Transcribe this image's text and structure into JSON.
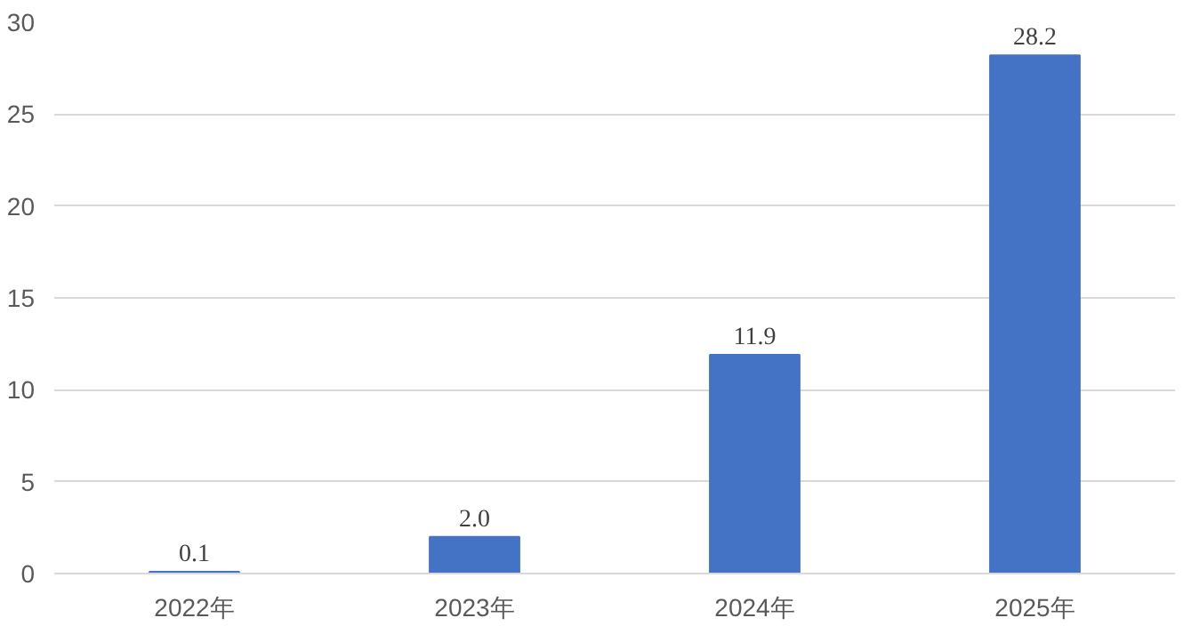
{
  "chart_data": {
    "type": "bar",
    "categories": [
      "2022年",
      "2023年",
      "2024年",
      "2025年"
    ],
    "values": [
      0.1,
      2.0,
      11.9,
      28.2
    ],
    "value_labels": [
      "0.1",
      "2.0",
      "11.9",
      "28.2"
    ],
    "color": "#4472c4",
    "ylim": [
      0,
      30
    ],
    "yticks": [
      0,
      5,
      10,
      15,
      20,
      25,
      30
    ],
    "grid": "y"
  }
}
